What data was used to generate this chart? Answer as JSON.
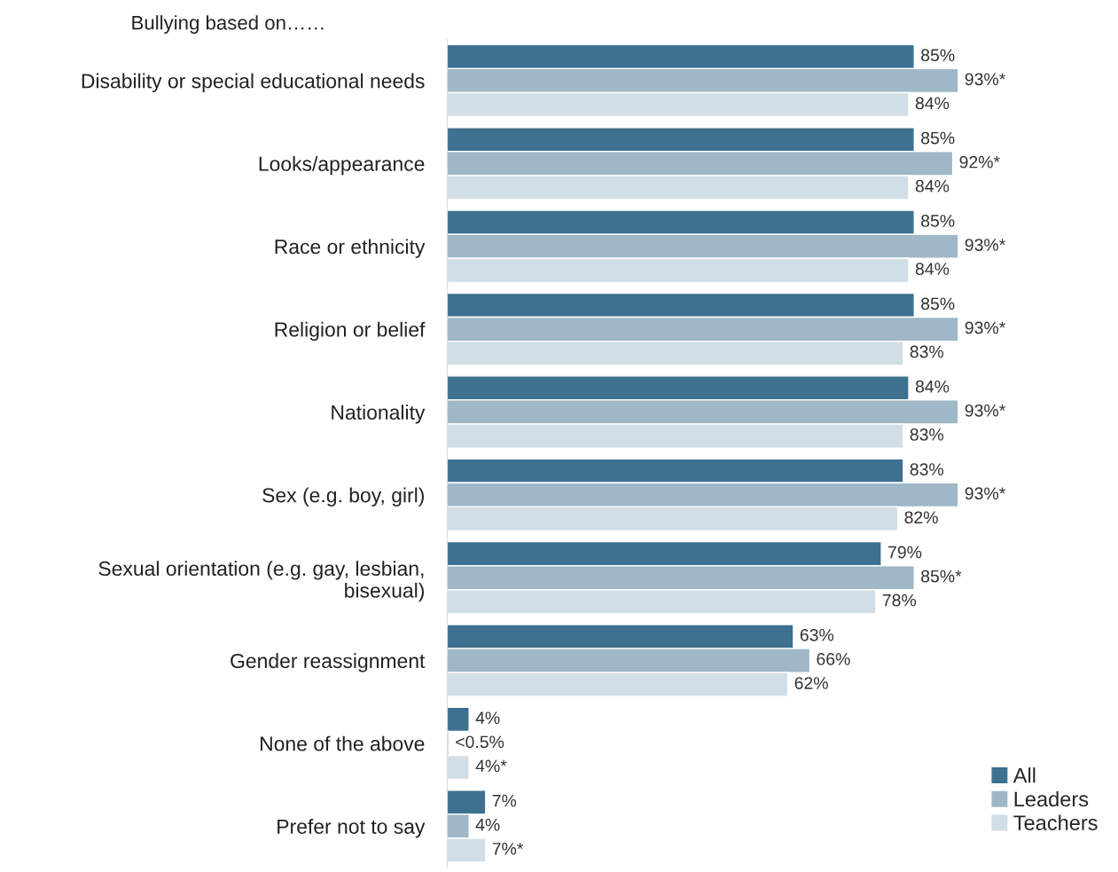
{
  "chart_data": {
    "type": "bar",
    "orientation": "horizontal",
    "title": "Bullying based on……",
    "categories": [
      "Disability or special educational needs",
      "Looks/appearance",
      "Race or ethnicity",
      "Religion or belief",
      "Nationality",
      "Sex (e.g. boy, girl)",
      "Sexual orientation (e.g. gay, lesbian,\nbisexual)",
      "Gender reassignment",
      "None of the above",
      "Prefer not to say"
    ],
    "series": [
      {
        "name": "All",
        "color": "#3e7090",
        "values": [
          85,
          85,
          85,
          85,
          84,
          83,
          79,
          63,
          4,
          7
        ],
        "value_labels": [
          "85%",
          "85%",
          "85%",
          "85%",
          "84%",
          "83%",
          "79%",
          "63%",
          "4%",
          "7%"
        ]
      },
      {
        "name": "Leaders",
        "color": "#9fb7c7",
        "values": [
          93,
          92,
          93,
          93,
          93,
          93,
          85,
          66,
          0.3,
          4
        ],
        "value_labels": [
          "93%*",
          "92%*",
          "93%*",
          "93%*",
          "93%*",
          "93%*",
          "85%*",
          "66%",
          "<0.5%",
          "4%"
        ]
      },
      {
        "name": "Teachers",
        "color": "#d1dee6",
        "values": [
          84,
          84,
          84,
          83,
          83,
          82,
          78,
          62,
          4,
          7
        ],
        "value_labels": [
          "84%",
          "84%",
          "84%",
          "83%",
          "83%",
          "82%",
          "78%",
          "62%",
          "4%*",
          "7%*"
        ]
      }
    ],
    "legend": "bottom right",
    "grid": false
  }
}
